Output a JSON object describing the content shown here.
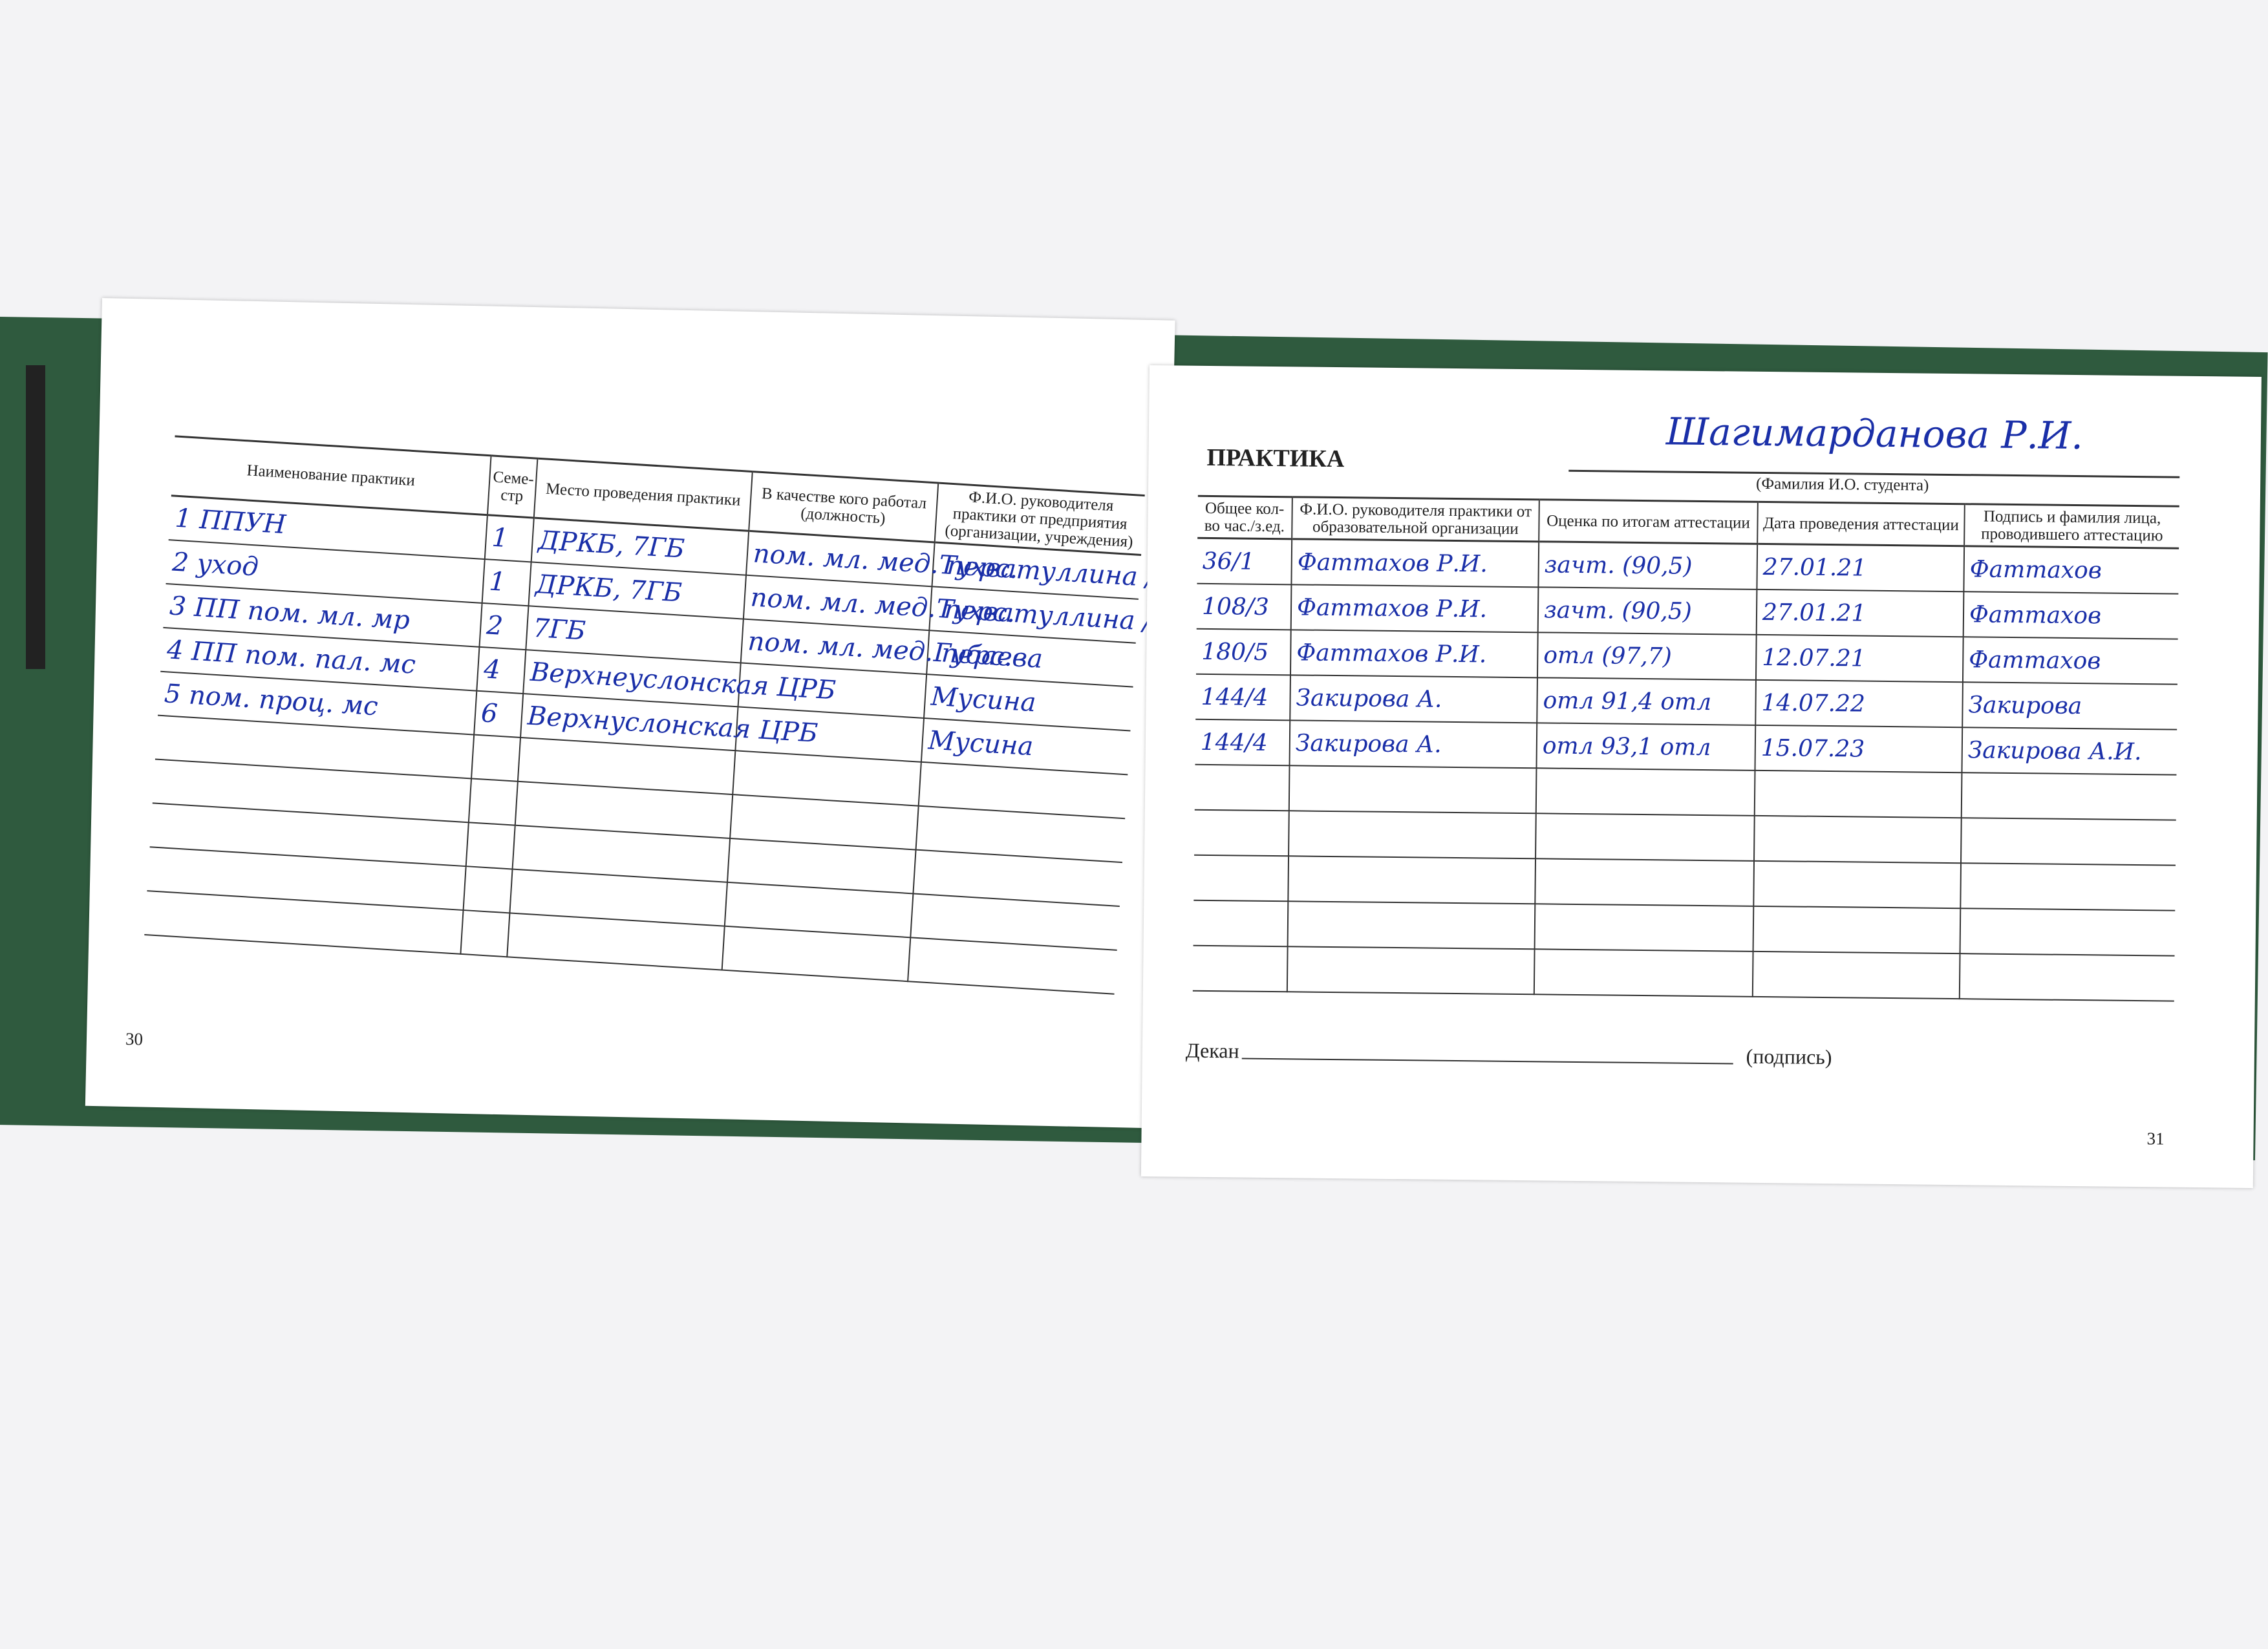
{
  "left_page": {
    "page_number": "30",
    "headers": [
      "Наименование практики",
      "Семе-стр",
      "Место проведения практики",
      "В качестве кого работал (должность)",
      "Ф.И.О. руководителя практики от предприятия (организации, учреждения)"
    ],
    "rows": [
      {
        "name": "1 ППУН",
        "semester": "1",
        "place": "ДРКБ, 7ГБ",
        "position": "пом. мл. мед. перс.",
        "supervisor": "Тухватуллина / Губаева"
      },
      {
        "name": "2 уход",
        "semester": "1",
        "place": "ДРКБ, 7ГБ",
        "position": "пом. мл. мед. перс.",
        "supervisor": "Тухватуллина / Губаева"
      },
      {
        "name": "3 ПП пом. мл. мр",
        "semester": "2",
        "place": "7ГБ",
        "position": "пом. мл. мед. перс.",
        "supervisor": "Губаева"
      },
      {
        "name": "4 ПП пом. пал. мс",
        "semester": "4",
        "place": "Верхнеуслонская ЦРБ",
        "position": "",
        "supervisor": "Мусина"
      },
      {
        "name": "5 пом. проц. мс",
        "semester": "6",
        "place": "Верхнуслонская ЦРБ",
        "position": "",
        "supervisor": "Мусина"
      },
      {
        "name": "",
        "semester": "",
        "place": "",
        "position": "",
        "supervisor": ""
      },
      {
        "name": "",
        "semester": "",
        "place": "",
        "position": "",
        "supervisor": ""
      },
      {
        "name": "",
        "semester": "",
        "place": "",
        "position": "",
        "supervisor": ""
      },
      {
        "name": "",
        "semester": "",
        "place": "",
        "position": "",
        "supervisor": ""
      },
      {
        "name": "",
        "semester": "",
        "place": "",
        "position": "",
        "supervisor": ""
      }
    ]
  },
  "right_page": {
    "page_number": "31",
    "title": "ПРАКТИКА",
    "student_name": "Шагимарданова Р.И.",
    "student_caption": "(Фамилия И.О. студента)",
    "headers": [
      "Общее кол-во час./з.ед.",
      "Ф.И.О. руководителя практики от образовательной организации",
      "Оценка по итогам аттестации",
      "Дата проведения аттестации",
      "Подпись и фамилия лица, проводившего аттестацию"
    ],
    "rows": [
      {
        "hours": "36/1",
        "supervisor": "Фаттахов Р.И.",
        "grade": "зачт. (90,5)",
        "date": "27.01.21",
        "signature": "Фаттахов"
      },
      {
        "hours": "108/3",
        "supervisor": "Фаттахов Р.И.",
        "grade": "зачт. (90,5)",
        "date": "27.01.21",
        "signature": "Фаттахов"
      },
      {
        "hours": "180/5",
        "supervisor": "Фаттахов Р.И.",
        "grade": "отл (97,7)",
        "date": "12.07.21",
        "signature": "Фаттахов"
      },
      {
        "hours": "144/4",
        "supervisor": "Закирова А.",
        "grade": "отл 91,4 отл",
        "date": "14.07.22",
        "signature": "Закирова"
      },
      {
        "hours": "144/4",
        "supervisor": "Закирова А.",
        "grade": "отл 93,1 отл",
        "date": "15.07.23",
        "signature": "Закирова А.И."
      },
      {
        "hours": "",
        "supervisor": "",
        "grade": "",
        "date": "",
        "signature": ""
      },
      {
        "hours": "",
        "supervisor": "",
        "grade": "",
        "date": "",
        "signature": ""
      },
      {
        "hours": "",
        "supervisor": "",
        "grade": "",
        "date": "",
        "signature": ""
      },
      {
        "hours": "",
        "supervisor": "",
        "grade": "",
        "date": "",
        "signature": ""
      },
      {
        "hours": "",
        "supervisor": "",
        "grade": "",
        "date": "",
        "signature": ""
      }
    ],
    "dean_label": "Декан",
    "signature_caption": "(подпись)"
  },
  "colors": {
    "cover": "#2f5a3e",
    "ink": "#1a2fa8",
    "paper": "#ffffff"
  }
}
